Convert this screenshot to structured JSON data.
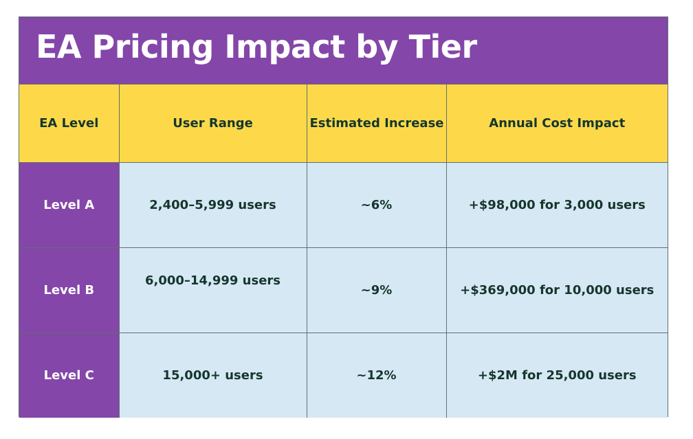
{
  "title": "EA Pricing Impact by Tier",
  "colors": {
    "header_bg": "#8446a8",
    "column_header_bg": "#fdd94a",
    "cell_bg": "#d7e8f5",
    "text_dark": "#14362c",
    "text_light": "#ffffff"
  },
  "table": {
    "headers": {
      "level": "EA Level",
      "range": "User Range",
      "increase": "Estimated Increase",
      "impact": "Annual Cost Impact"
    },
    "rows": [
      {
        "level": "Level A",
        "range": "2,400–5,999 users",
        "increase": "~6%",
        "impact": "+$98,000 for 3,000 users"
      },
      {
        "level": "Level B",
        "range": "6,000–14,999 users",
        "increase": "~9%",
        "impact": "+$369,000 for 10,000 users"
      },
      {
        "level": "Level C",
        "range": "15,000+ users",
        "increase": "~12%",
        "impact": "+$2M for 25,000 users"
      }
    ]
  }
}
